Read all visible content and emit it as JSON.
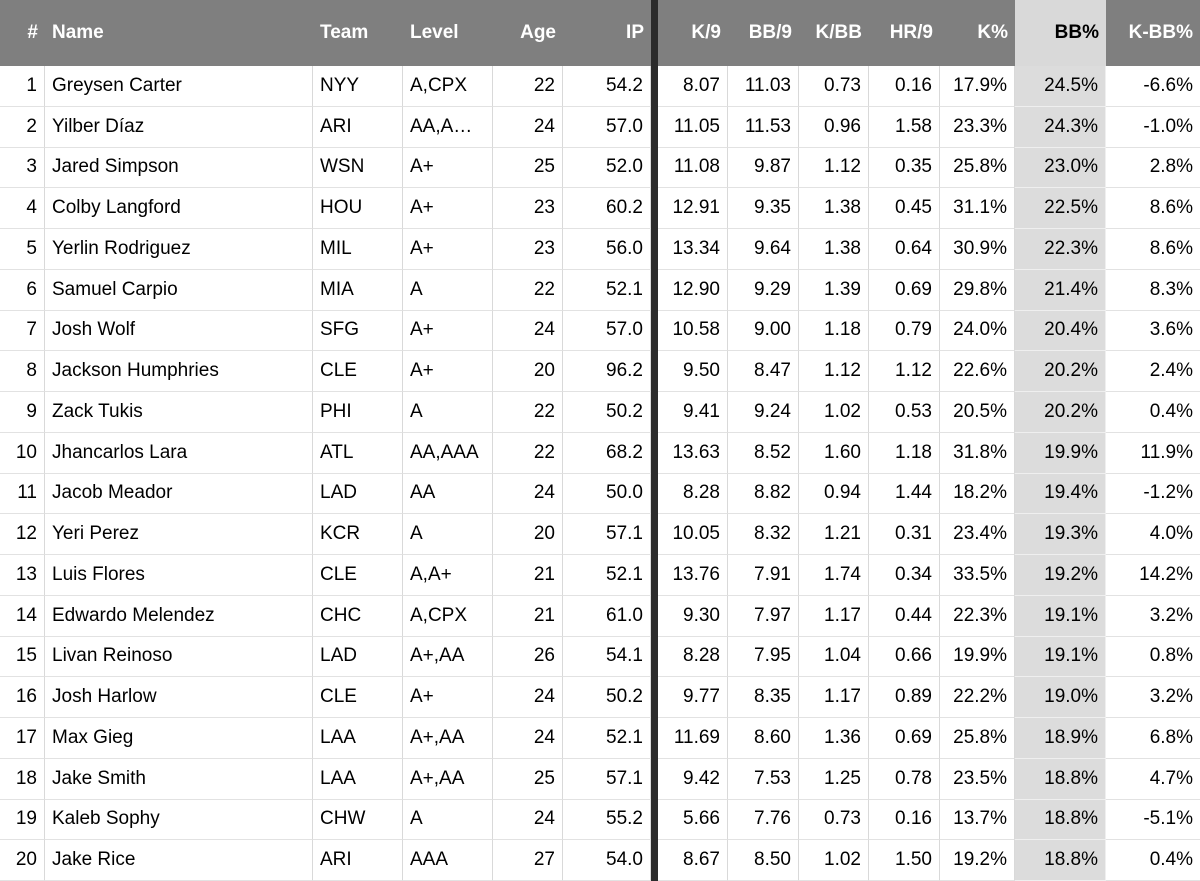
{
  "colors": {
    "header_bg": "#7f7f7f",
    "header_text": "#ffffff",
    "highlight_header_bg": "#d9d9d9",
    "highlight_cell_bg": "#dcdcdc",
    "frozen_divider": "#2b2b2b",
    "gridline": "#e2e2e2"
  },
  "table": {
    "columns": [
      {
        "key": "rank",
        "label": "#",
        "align": "right"
      },
      {
        "key": "name",
        "label": "Name",
        "align": "left"
      },
      {
        "key": "team",
        "label": "Team",
        "align": "left"
      },
      {
        "key": "level",
        "label": "Level",
        "align": "left"
      },
      {
        "key": "age",
        "label": "Age",
        "align": "right"
      },
      {
        "key": "ip",
        "label": "IP",
        "align": "right",
        "divider_after": true
      },
      {
        "key": "k9",
        "label": "K/9",
        "align": "right"
      },
      {
        "key": "bb9",
        "label": "BB/9",
        "align": "right"
      },
      {
        "key": "kbb",
        "label": "K/BB",
        "align": "right"
      },
      {
        "key": "hr9",
        "label": "HR/9",
        "align": "right"
      },
      {
        "key": "kpct",
        "label": "K%",
        "align": "right"
      },
      {
        "key": "bbpct",
        "label": "BB%",
        "align": "right",
        "highlighted": true
      },
      {
        "key": "kbbpct",
        "label": "K-BB%",
        "align": "right"
      }
    ],
    "rows": [
      [
        "1",
        "Greysen Carter",
        "NYY",
        "A,CPX",
        "22",
        "54.2",
        "8.07",
        "11.03",
        "0.73",
        "0.16",
        "17.9%",
        "24.5%",
        "-6.6%"
      ],
      [
        "2",
        "Yilber Díaz",
        "ARI",
        "AA,A…",
        "24",
        "57.0",
        "11.05",
        "11.53",
        "0.96",
        "1.58",
        "23.3%",
        "24.3%",
        "-1.0%"
      ],
      [
        "3",
        "Jared Simpson",
        "WSN",
        "A+",
        "25",
        "52.0",
        "11.08",
        "9.87",
        "1.12",
        "0.35",
        "25.8%",
        "23.0%",
        "2.8%"
      ],
      [
        "4",
        "Colby Langford",
        "HOU",
        "A+",
        "23",
        "60.2",
        "12.91",
        "9.35",
        "1.38",
        "0.45",
        "31.1%",
        "22.5%",
        "8.6%"
      ],
      [
        "5",
        "Yerlin Rodriguez",
        "MIL",
        "A+",
        "23",
        "56.0",
        "13.34",
        "9.64",
        "1.38",
        "0.64",
        "30.9%",
        "22.3%",
        "8.6%"
      ],
      [
        "6",
        "Samuel Carpio",
        "MIA",
        "A",
        "22",
        "52.1",
        "12.90",
        "9.29",
        "1.39",
        "0.69",
        "29.8%",
        "21.4%",
        "8.3%"
      ],
      [
        "7",
        "Josh Wolf",
        "SFG",
        "A+",
        "24",
        "57.0",
        "10.58",
        "9.00",
        "1.18",
        "0.79",
        "24.0%",
        "20.4%",
        "3.6%"
      ],
      [
        "8",
        "Jackson Humphries",
        "CLE",
        "A+",
        "20",
        "96.2",
        "9.50",
        "8.47",
        "1.12",
        "1.12",
        "22.6%",
        "20.2%",
        "2.4%"
      ],
      [
        "9",
        "Zack Tukis",
        "PHI",
        "A",
        "22",
        "50.2",
        "9.41",
        "9.24",
        "1.02",
        "0.53",
        "20.5%",
        "20.2%",
        "0.4%"
      ],
      [
        "10",
        "Jhancarlos Lara",
        "ATL",
        "AA,AAA",
        "22",
        "68.2",
        "13.63",
        "8.52",
        "1.60",
        "1.18",
        "31.8%",
        "19.9%",
        "11.9%"
      ],
      [
        "11",
        "Jacob Meador",
        "LAD",
        "AA",
        "24",
        "50.0",
        "8.28",
        "8.82",
        "0.94",
        "1.44",
        "18.2%",
        "19.4%",
        "-1.2%"
      ],
      [
        "12",
        "Yeri Perez",
        "KCR",
        "A",
        "20",
        "57.1",
        "10.05",
        "8.32",
        "1.21",
        "0.31",
        "23.4%",
        "19.3%",
        "4.0%"
      ],
      [
        "13",
        "Luis Flores",
        "CLE",
        "A,A+",
        "21",
        "52.1",
        "13.76",
        "7.91",
        "1.74",
        "0.34",
        "33.5%",
        "19.2%",
        "14.2%"
      ],
      [
        "14",
        "Edwardo Melendez",
        "CHC",
        "A,CPX",
        "21",
        "61.0",
        "9.30",
        "7.97",
        "1.17",
        "0.44",
        "22.3%",
        "19.1%",
        "3.2%"
      ],
      [
        "15",
        "Livan Reinoso",
        "LAD",
        "A+,AA",
        "26",
        "54.1",
        "8.28",
        "7.95",
        "1.04",
        "0.66",
        "19.9%",
        "19.1%",
        "0.8%"
      ],
      [
        "16",
        "Josh Harlow",
        "CLE",
        "A+",
        "24",
        "50.2",
        "9.77",
        "8.35",
        "1.17",
        "0.89",
        "22.2%",
        "19.0%",
        "3.2%"
      ],
      [
        "17",
        "Max Gieg",
        "LAA",
        "A+,AA",
        "24",
        "52.1",
        "11.69",
        "8.60",
        "1.36",
        "0.69",
        "25.8%",
        "18.9%",
        "6.8%"
      ],
      [
        "18",
        "Jake Smith",
        "LAA",
        "A+,AA",
        "25",
        "57.1",
        "9.42",
        "7.53",
        "1.25",
        "0.78",
        "23.5%",
        "18.8%",
        "4.7%"
      ],
      [
        "19",
        "Kaleb Sophy",
        "CHW",
        "A",
        "24",
        "55.2",
        "5.66",
        "7.76",
        "0.73",
        "0.16",
        "13.7%",
        "18.8%",
        "-5.1%"
      ],
      [
        "20",
        "Jake Rice",
        "ARI",
        "AAA",
        "27",
        "54.0",
        "8.67",
        "8.50",
        "1.02",
        "1.50",
        "19.2%",
        "18.8%",
        "0.4%"
      ]
    ]
  }
}
